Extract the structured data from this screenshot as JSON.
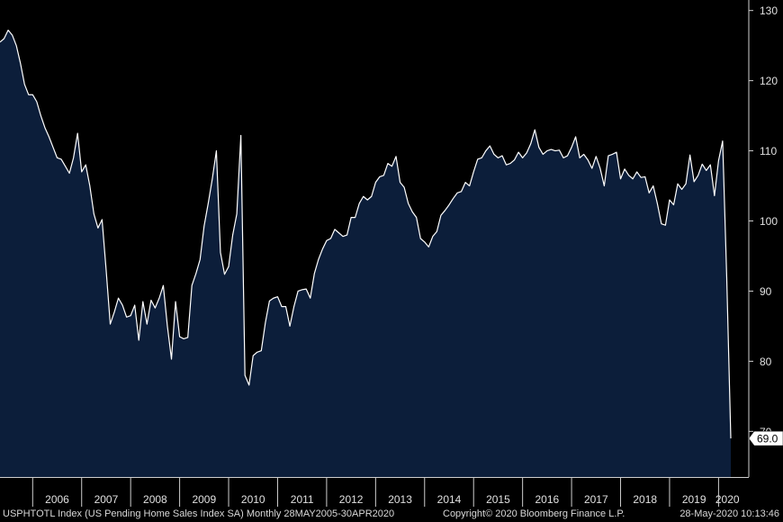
{
  "chart_data": {
    "type": "area",
    "series": [
      {
        "x": [
          "2005-05",
          "2005-06",
          "2005-07",
          "2005-08",
          "2005-09",
          "2005-10",
          "2005-11",
          "2005-12",
          "2006-01",
          "2006-02",
          "2006-03",
          "2006-04",
          "2006-05",
          "2006-06",
          "2006-07",
          "2006-08",
          "2006-09",
          "2006-10",
          "2006-11",
          "2006-12",
          "2007-01",
          "2007-02",
          "2007-03",
          "2007-04",
          "2007-05",
          "2007-06",
          "2007-07",
          "2007-08",
          "2007-09",
          "2007-10",
          "2007-11",
          "2007-12",
          "2008-01",
          "2008-02",
          "2008-03",
          "2008-04",
          "2008-05",
          "2008-06",
          "2008-07",
          "2008-08",
          "2008-09",
          "2008-10",
          "2008-11",
          "2008-12",
          "2009-01",
          "2009-02",
          "2009-03",
          "2009-04",
          "2009-05",
          "2009-06",
          "2009-07",
          "2009-08",
          "2009-09",
          "2009-10",
          "2009-11",
          "2009-12",
          "2010-01",
          "2010-02",
          "2010-03",
          "2010-04",
          "2010-05",
          "2010-06",
          "2010-07",
          "2010-08",
          "2010-09",
          "2010-10",
          "2010-11",
          "2010-12",
          "2011-01",
          "2011-02",
          "2011-03",
          "2011-04",
          "2011-05",
          "2011-06",
          "2011-07",
          "2011-08",
          "2011-09",
          "2011-10",
          "2011-11",
          "2011-12",
          "2012-01",
          "2012-02",
          "2012-03",
          "2012-04",
          "2012-05",
          "2012-06",
          "2012-07",
          "2012-08",
          "2012-09",
          "2012-10",
          "2012-11",
          "2012-12",
          "2013-01",
          "2013-02",
          "2013-03",
          "2013-04",
          "2013-05",
          "2013-06",
          "2013-07",
          "2013-08",
          "2013-09",
          "2013-10",
          "2013-11",
          "2013-12",
          "2014-01",
          "2014-02",
          "2014-03",
          "2014-04",
          "2014-05",
          "2014-06",
          "2014-07",
          "2014-08",
          "2014-09",
          "2014-10",
          "2014-11",
          "2014-12",
          "2015-01",
          "2015-02",
          "2015-03",
          "2015-04",
          "2015-05",
          "2015-06",
          "2015-07",
          "2015-08",
          "2015-09",
          "2015-10",
          "2015-11",
          "2015-12",
          "2016-01",
          "2016-02",
          "2016-03",
          "2016-04",
          "2016-05",
          "2016-06",
          "2016-07",
          "2016-08",
          "2016-09",
          "2016-10",
          "2016-11",
          "2016-12",
          "2017-01",
          "2017-02",
          "2017-03",
          "2017-04",
          "2017-05",
          "2017-06",
          "2017-07",
          "2017-08",
          "2017-09",
          "2017-10",
          "2017-11",
          "2017-12",
          "2018-01",
          "2018-02",
          "2018-03",
          "2018-04",
          "2018-05",
          "2018-06",
          "2018-07",
          "2018-08",
          "2018-09",
          "2018-10",
          "2018-11",
          "2018-12",
          "2019-01",
          "2019-02",
          "2019-03",
          "2019-04",
          "2019-05",
          "2019-06",
          "2019-07",
          "2019-08",
          "2019-09",
          "2019-10",
          "2019-11",
          "2019-12",
          "2020-01",
          "2020-02",
          "2020-03",
          "2020-04"
        ],
        "values": [
          125.5,
          126.0,
          127.2,
          126.5,
          125.0,
          122.5,
          119.5,
          118.0,
          118.0,
          117.0,
          115.0,
          113.3,
          112.0,
          110.5,
          109.0,
          108.8,
          107.8,
          106.8,
          109.0,
          112.5,
          107.0,
          108.0,
          105.0,
          101.0,
          99.0,
          100.2,
          93.0,
          85.3,
          87.0,
          89.0,
          88.0,
          86.3,
          86.5,
          88.0,
          83.0,
          88.5,
          85.3,
          88.7,
          87.6,
          89.0,
          90.8,
          85.0,
          80.3,
          88.5,
          83.5,
          83.2,
          83.4,
          90.8,
          92.5,
          94.5,
          99.3,
          102.5,
          106.0,
          110.0,
          95.5,
          92.4,
          93.5,
          98.0,
          101.0,
          112.2,
          78.0,
          76.6,
          80.8,
          81.3,
          81.5,
          85.5,
          88.6,
          89.0,
          89.2,
          87.8,
          87.8,
          85.0,
          87.8,
          90.0,
          90.2,
          90.3,
          89.0,
          92.5,
          94.5,
          96.0,
          97.2,
          97.5,
          98.8,
          98.3,
          97.8,
          98.0,
          100.5,
          100.5,
          102.5,
          103.5,
          103.0,
          103.5,
          105.5,
          106.3,
          106.5,
          108.2,
          107.8,
          109.2,
          105.5,
          104.8,
          102.5,
          101.3,
          100.5,
          97.5,
          97.0,
          96.3,
          97.8,
          98.5,
          100.8,
          101.5,
          102.3,
          103.2,
          104.0,
          104.2,
          105.5,
          105.0,
          107.0,
          108.8,
          109.0,
          110.0,
          110.7,
          109.5,
          109.0,
          109.3,
          108.0,
          108.2,
          108.7,
          109.8,
          109.0,
          109.7,
          111.0,
          113.0,
          110.5,
          109.5,
          110.0,
          110.2,
          110.0,
          110.1,
          109.0,
          109.3,
          110.5,
          112.0,
          109.0,
          109.5,
          108.7,
          107.5,
          109.2,
          107.5,
          105.0,
          109.3,
          109.5,
          109.8,
          106.0,
          107.4,
          106.5,
          106.0,
          107.0,
          106.2,
          106.3,
          104.0,
          105.0,
          102.5,
          99.6,
          99.4,
          103.0,
          102.3,
          105.3,
          104.5,
          105.3,
          109.4,
          105.6,
          106.5,
          108.1,
          107.2,
          108.0,
          103.6,
          108.6,
          111.4,
          92.0,
          69.0
        ]
      }
    ],
    "ylim": [
      63.5,
      131.5
    ],
    "yticks": [
      70,
      80,
      90,
      100,
      110,
      120,
      130
    ],
    "xtick_labels": [
      "2006",
      "2007",
      "2008",
      "2009",
      "2010",
      "2011",
      "2012",
      "2013",
      "2014",
      "2015",
      "2016",
      "2017",
      "2018",
      "2019",
      "2020"
    ],
    "last_value_label": "69.0",
    "grid": false,
    "colors": {
      "background": "#000000",
      "fill": "#0c1e3a",
      "line": "#ffffff",
      "axis_text": "#e0e0e0"
    }
  },
  "footer": {
    "left": "USPHTOTL Index (US Pending Home Sales Index SA)  Monthly 28MAY2005-30APR2020",
    "middle": "Copyright© 2020 Bloomberg Finance L.P.",
    "right": "28-May-2020 10:13:46"
  }
}
